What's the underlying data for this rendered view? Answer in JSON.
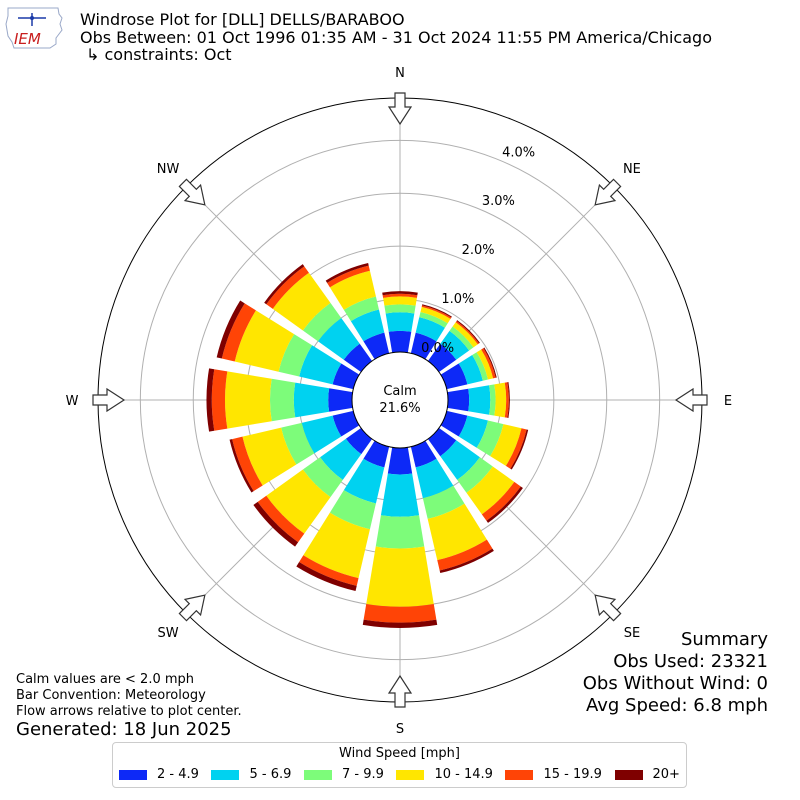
{
  "header": {
    "logo_text": "IEM",
    "title": "Windrose Plot for [DLL] DELLS/BARABOO",
    "obs_between": "Obs Between: 01 Oct 1996 01:35 AM - 31 Oct 2024 11:55 PM America/Chicago",
    "constraints": "↳ constraints: Oct"
  },
  "chart_data": {
    "type": "windrose",
    "directions": [
      "N",
      "NNE",
      "NE",
      "ENE",
      "E",
      "ESE",
      "SE",
      "SSE",
      "S",
      "SSW",
      "SW",
      "WSW",
      "W",
      "WNW",
      "NW",
      "NNW"
    ],
    "compass_labels": [
      "N",
      "NE",
      "E",
      "SE",
      "S",
      "SW",
      "W",
      "NW"
    ],
    "radial_ticks": [
      0,
      1,
      2,
      3,
      4
    ],
    "radial_tick_labels": [
      "0.0%",
      "1.0%",
      "2.0%",
      "3.0%",
      "4.0%"
    ],
    "radial_max": 4.8,
    "calm_label": "Calm",
    "calm_value": "21.6%",
    "bin_labels": [
      "2 - 4.9",
      "5 - 6.9",
      "7 - 9.9",
      "10 - 14.9",
      "15 - 19.9",
      "20+"
    ],
    "bin_colors": [
      "#0d29f7",
      "#00d2f0",
      "#7dfc7a",
      "#ffe600",
      "#ff4406",
      "#7f0000"
    ],
    "bars_cumulative": [
      [
        0.4,
        0.75,
        0.9,
        1.05,
        1.1,
        1.15
      ],
      [
        0.4,
        0.7,
        0.8,
        0.9,
        0.93,
        0.95
      ],
      [
        0.4,
        0.7,
        0.8,
        0.9,
        0.93,
        0.95
      ],
      [
        0.4,
        0.7,
        0.8,
        0.9,
        0.95,
        0.97
      ],
      [
        0.4,
        0.8,
        0.9,
        1.1,
        1.15,
        1.17
      ],
      [
        0.4,
        0.8,
        1.1,
        1.45,
        1.55,
        1.58
      ],
      [
        0.4,
        0.95,
        1.25,
        1.75,
        1.9,
        1.95
      ],
      [
        0.4,
        1.0,
        1.4,
        2.2,
        2.4,
        2.45
      ],
      [
        0.5,
        1.3,
        1.9,
        3.0,
        3.3,
        3.4
      ],
      [
        0.4,
        1.1,
        1.6,
        2.55,
        2.7,
        2.8
      ],
      [
        0.35,
        0.95,
        1.35,
        2.2,
        2.4,
        2.5
      ],
      [
        0.4,
        1.0,
        1.4,
        2.15,
        2.35,
        2.4
      ],
      [
        0.45,
        1.1,
        1.55,
        2.4,
        2.65,
        2.75
      ],
      [
        0.4,
        1.05,
        1.45,
        2.3,
        2.55,
        2.65
      ],
      [
        0.4,
        1.0,
        1.35,
        2.05,
        2.2,
        2.25
      ],
      [
        0.4,
        0.85,
        1.1,
        1.6,
        1.7,
        1.75
      ]
    ]
  },
  "notes": {
    "line1": "Calm values are < 2.0 mph",
    "line2": "Bar Convention: Meteorology",
    "line3": "Flow arrows relative to plot center.",
    "generated": "Generated: 18 Jun 2025"
  },
  "summary": {
    "title": "Summary",
    "obs_used": "Obs Used: 23321",
    "obs_without_wind": "Obs Without Wind: 0",
    "avg_speed": "Avg Speed: 6.8 mph"
  },
  "legend": {
    "title": "Wind Speed [mph]"
  }
}
